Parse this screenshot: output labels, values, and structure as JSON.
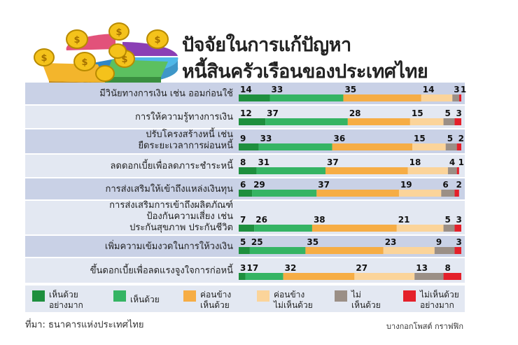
{
  "chart_data": {
    "type": "bar",
    "orientation": "horizontal",
    "stacked": true,
    "normalized_percent": true,
    "title": "ปัจจัยในการแก้ปัญหาหนี้สินครัวเรือนของประเทศไทย",
    "title_lines": [
      "ปัจจัยในการแก้ปัญหา",
      "หนี้สินครัวเรือนของประเทศไทย"
    ],
    "categories": [
      [
        "มีวินัยทางการเงิน เช่น ออมก่อนใช้"
      ],
      [
        "การให้ความรู้ทางการเงิน"
      ],
      [
        "ปรับโครงสร้างหนี้ เช่น",
        "ยืดระยะเวลาการผ่อนหนี้"
      ],
      [
        "ลดดอกเบี้ยเพื่อลดภาระชำระหนี้"
      ],
      [
        "การส่งเสริมให้เข้าถึงแหล่งเงินทุน"
      ],
      [
        "การส่งเสริมการเข้าถึงผลิตภัณฑ์",
        "ป้องกันความเสี่ยง เช่น",
        "ประกันสุขภาพ ประกันชีวิต"
      ],
      [
        "เพิ่มความเข้มงวดในการให้วงเงิน"
      ],
      [
        "ขึ้นดอกเบี้ยเพื่อลดแรงจูงใจการก่อหนี้"
      ]
    ],
    "series": [
      {
        "name": "เห็นด้วยอย่างมาก",
        "legend_lines": [
          "เห็นด้วย",
          "อย่างมาก"
        ],
        "color": "#1e8f3e",
        "values": [
          14,
          12,
          9,
          8,
          6,
          7,
          5,
          3
        ]
      },
      {
        "name": "เห็นด้วย",
        "legend_lines": [
          "เห็นด้วย"
        ],
        "color": "#35b464",
        "values": [
          33,
          37,
          33,
          31,
          29,
          26,
          25,
          17
        ]
      },
      {
        "name": "ค่อนข้างเห็นด้วย",
        "legend_lines": [
          "ค่อนข้าง",
          "เห็นด้วย"
        ],
        "color": "#f6ad45",
        "values": [
          35,
          28,
          36,
          37,
          37,
          38,
          35,
          32
        ]
      },
      {
        "name": "ค่อนข้างไม่เห็นด้วย",
        "legend_lines": [
          "ค่อนข้าง",
          "ไม่เห็นด้วย"
        ],
        "color": "#fbd49a",
        "values": [
          14,
          15,
          15,
          18,
          19,
          21,
          23,
          27
        ]
      },
      {
        "name": "ไม่เห็นด้วย",
        "legend_lines": [
          "ไม่",
          "เห็นด้วย"
        ],
        "color": "#9b8f86",
        "values": [
          3,
          5,
          5,
          4,
          6,
          5,
          9,
          13
        ]
      },
      {
        "name": "ไม่เห็นด้วยอย่างมาก",
        "legend_lines": [
          "ไม่เห็นด้วย",
          "อย่างมาก"
        ],
        "color": "#e4202a",
        "values": [
          1,
          3,
          2,
          1,
          2,
          3,
          3,
          8
        ]
      }
    ],
    "xlim": [
      0,
      100
    ],
    "legend_position": "bottom",
    "row_band_colors": [
      "#c9d1e6",
      "#e3e8f2"
    ]
  },
  "footer": {
    "source": "ที่มา: ธนาคารแห่งประเทศไทย",
    "credit": "บางกอกโพสต์ กราฟฟิก"
  },
  "decoration": {
    "icon": "coins-pie-chart-icon"
  }
}
